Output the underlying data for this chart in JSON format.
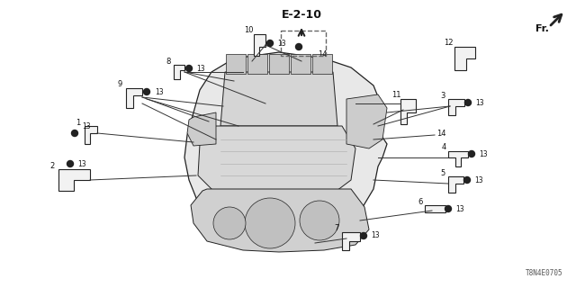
{
  "bg_color": "#ffffff",
  "diagram_code": "E-2-10",
  "part_code": "T8N4E0705",
  "fig_width": 6.4,
  "fig_height": 3.2,
  "dpi": 100,
  "line_color": "#222222",
  "text_color": "#111111"
}
